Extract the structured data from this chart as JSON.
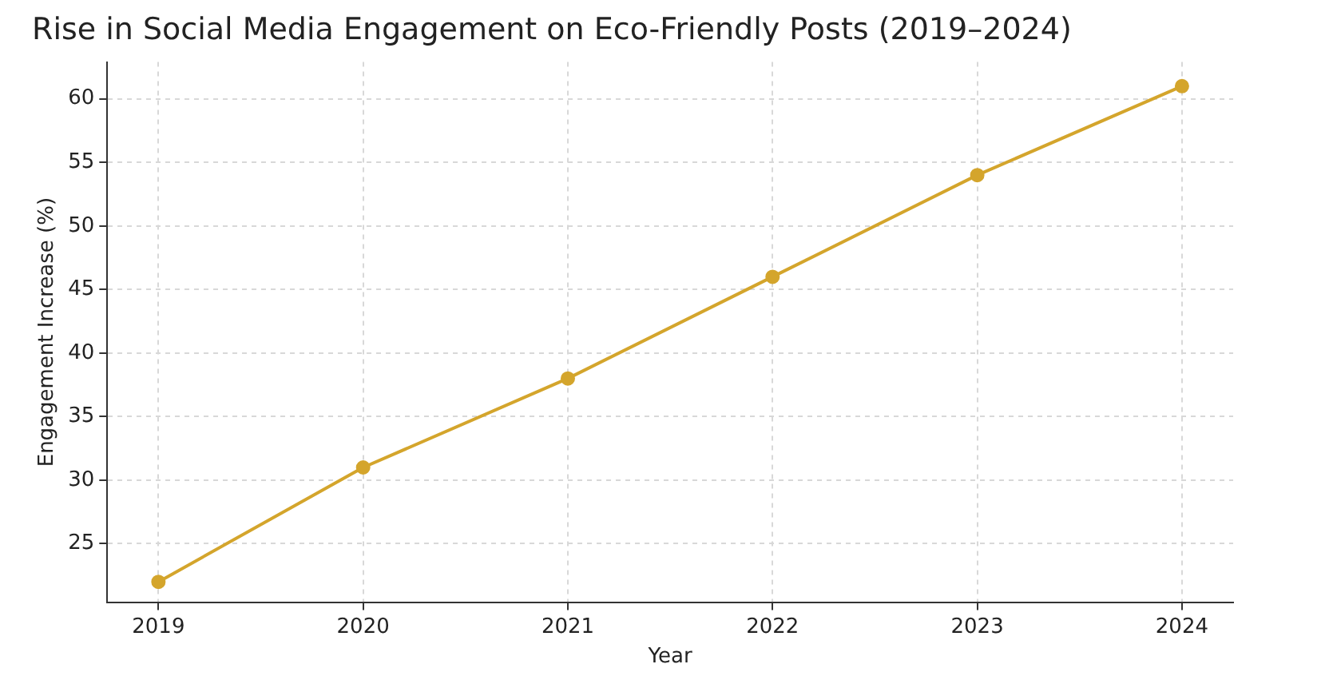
{
  "chart_data": {
    "type": "line",
    "title": "Rise in Social Media Engagement on Eco-Friendly Posts (2019–2024)",
    "xlabel": "Year",
    "ylabel": "Engagement Increase (%)",
    "x": [
      2019,
      2020,
      2021,
      2022,
      2023,
      2024
    ],
    "series": [
      {
        "color": "#d4a52c",
        "values": [
          22,
          31,
          38,
          46,
          54,
          61
        ]
      }
    ],
    "xlim": [
      2018.75,
      2024.25
    ],
    "xticks": [
      2019,
      2020,
      2021,
      2022,
      2023,
      2024
    ],
    "ylim": [
      20.4,
      62.9
    ],
    "yticks": [
      25,
      30,
      35,
      40,
      45,
      50,
      55,
      60
    ],
    "grid": true,
    "marker": "circle",
    "line_style": "solid",
    "legend": false
  }
}
